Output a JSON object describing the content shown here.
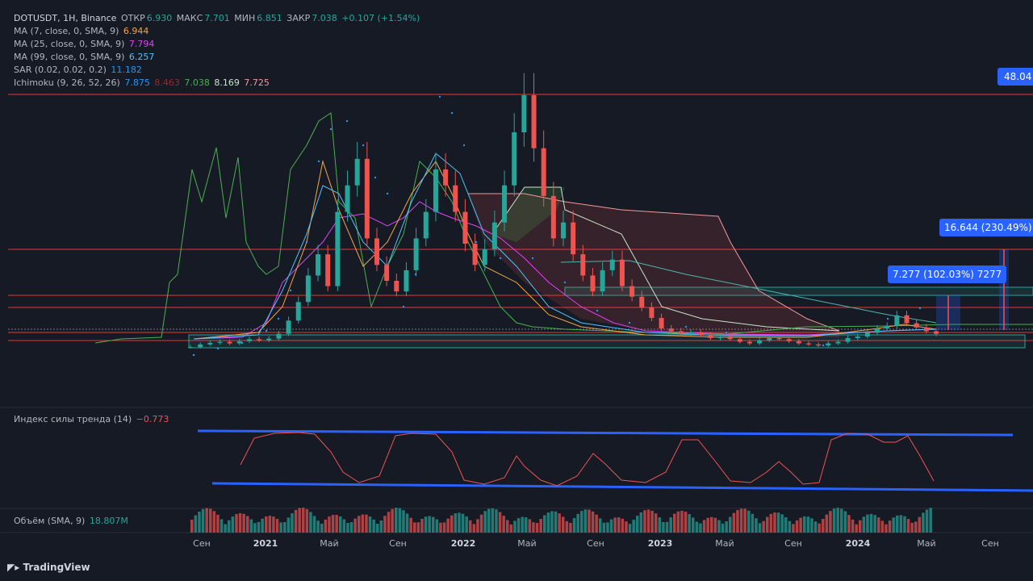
{
  "header": {
    "symbol": "DOTUSDT, 1H, Binance",
    "open_label": "ОТКР",
    "open": "6.930",
    "high_label": "МАКС",
    "high": "7.701",
    "low_label": "МИН",
    "low": "6.851",
    "close_label": "ЗАКР",
    "close": "7.038",
    "change": "+0.107 (+1.54%)"
  },
  "indicators": [
    {
      "label": "MA (7, close, 0, SMA, 9)",
      "value": "6.944",
      "color": "#f7a546"
    },
    {
      "label": "MA (25, close, 0, SMA, 9)",
      "value": "7.794",
      "color": "#e040fb"
    },
    {
      "label": "MA (99, close, 0, SMA, 9)",
      "value": "6.257",
      "color": "#4fc3f7"
    },
    {
      "label": "SAR (0.02, 0.02, 0.2)",
      "value": "11.182",
      "color": "#2196f3"
    }
  ],
  "ichimoku": {
    "label": "Ichimoku (9, 26, 52, 26)",
    "values": [
      {
        "v": "7.875",
        "color": "#2196f3"
      },
      {
        "v": "8.463",
        "color": "#8b2e2e"
      },
      {
        "v": "7.038",
        "color": "#4caf50"
      },
      {
        "v": "8.169",
        "color": "#c8e6c9"
      },
      {
        "v": "7.725",
        "color": "#ef9a9a"
      }
    ]
  },
  "price_labels": {
    "top": "48.04",
    "measure1": "16.644 (230.49%)",
    "measure2": "7.277 (102.03%) 7277"
  },
  "trend_panel": {
    "label": "Индекс силы тренда (14)",
    "value": "−0.773"
  },
  "volume_panel": {
    "label": "Объём (SMA, 9)",
    "value": "18.807M"
  },
  "x_axis": {
    "ticks": [
      {
        "label": "Сен",
        "bold": false
      },
      {
        "label": "2021",
        "bold": true
      },
      {
        "label": "Май",
        "bold": false
      },
      {
        "label": "Сен",
        "bold": false
      },
      {
        "label": "2022",
        "bold": true
      },
      {
        "label": "Май",
        "bold": false
      },
      {
        "label": "Сен",
        "bold": false
      },
      {
        "label": "2023",
        "bold": true
      },
      {
        "label": "Май",
        "bold": false
      },
      {
        "label": "Сен",
        "bold": false
      },
      {
        "label": "2024",
        "bold": true
      },
      {
        "label": "Май",
        "bold": false
      },
      {
        "label": "Сен",
        "bold": false
      }
    ]
  },
  "logo": "TradingView",
  "colors": {
    "up": "#26a69a",
    "down": "#ef5350",
    "bg": "#161a25",
    "accent": "#2962ff"
  },
  "chart_data": {
    "type": "candlestick",
    "title": "DOTUSDT, 1H, Binance",
    "ylim": [
      0,
      55
    ],
    "horizontal_levels": [
      48.04,
      16.644,
      12.5,
      11.2,
      7.277
    ],
    "close_series": [
      4.5,
      5.0,
      5.3,
      5.5,
      5.2,
      5.6,
      6.0,
      5.8,
      6.1,
      7.0,
      9.5,
      13.0,
      18.0,
      22.0,
      16.0,
      30.0,
      35.0,
      40.0,
      25.0,
      20.0,
      17.0,
      15.0,
      19.0,
      25.0,
      30.0,
      38.0,
      35.0,
      30.0,
      24.0,
      20.0,
      23.0,
      28.0,
      35.0,
      45.0,
      52.0,
      42.0,
      33.0,
      25.0,
      28.0,
      22.0,
      18.0,
      15.0,
      19.0,
      21.0,
      16.0,
      14.0,
      12.0,
      10.0,
      8.0,
      7.5,
      7.0,
      7.3,
      6.8,
      6.2,
      6.5,
      6.0,
      5.5,
      5.2,
      5.8,
      6.2,
      6.0,
      5.6,
      5.2,
      5.0,
      4.8,
      5.2,
      5.5,
      6.2,
      6.5,
      7.2,
      8.0,
      8.5,
      10.5,
      9.0,
      8.2,
      7.5,
      7.0
    ]
  }
}
